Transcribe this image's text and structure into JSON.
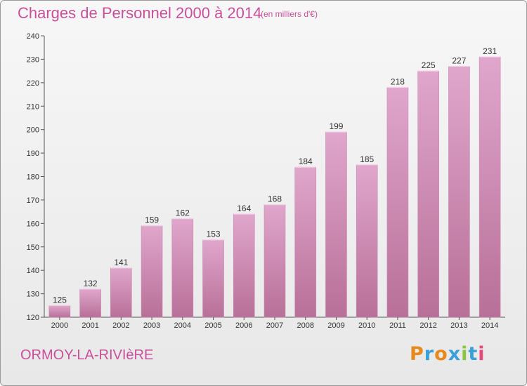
{
  "header": {
    "title": "Charges de Personnel 2000 à 2014",
    "subtitle": "(en milliers d'€)"
  },
  "footer": {
    "city": "ORMOY-LA-RIVIèRE",
    "brand": "Proxiti",
    "brand_colors": [
      "#e8891c",
      "#3aa0d8",
      "#e8891c",
      "#3aa0d8",
      "#8cc63f",
      "#3aa0d8",
      "#e84a7a"
    ]
  },
  "colors": {
    "bar_top": "#e0a6cc",
    "bar_bottom": "#b87098",
    "text_accent": "#c8509a"
  },
  "chart_data": {
    "type": "bar",
    "title": "Charges de Personnel 2000 à 2014",
    "subtitle": "(en milliers d'€)",
    "categories": [
      "2000",
      "2001",
      "2002",
      "2003",
      "2004",
      "2005",
      "2006",
      "2007",
      "2008",
      "2009",
      "2010",
      "2011",
      "2012",
      "2013",
      "2014"
    ],
    "values": [
      125,
      132,
      141,
      159,
      162,
      153,
      164,
      168,
      184,
      199,
      185,
      218,
      225,
      227,
      231
    ],
    "ylim": [
      120,
      240
    ],
    "yticks": [
      120,
      130,
      140,
      150,
      160,
      170,
      180,
      190,
      200,
      210,
      220,
      230,
      240
    ],
    "grid": false,
    "data_labels": true
  }
}
